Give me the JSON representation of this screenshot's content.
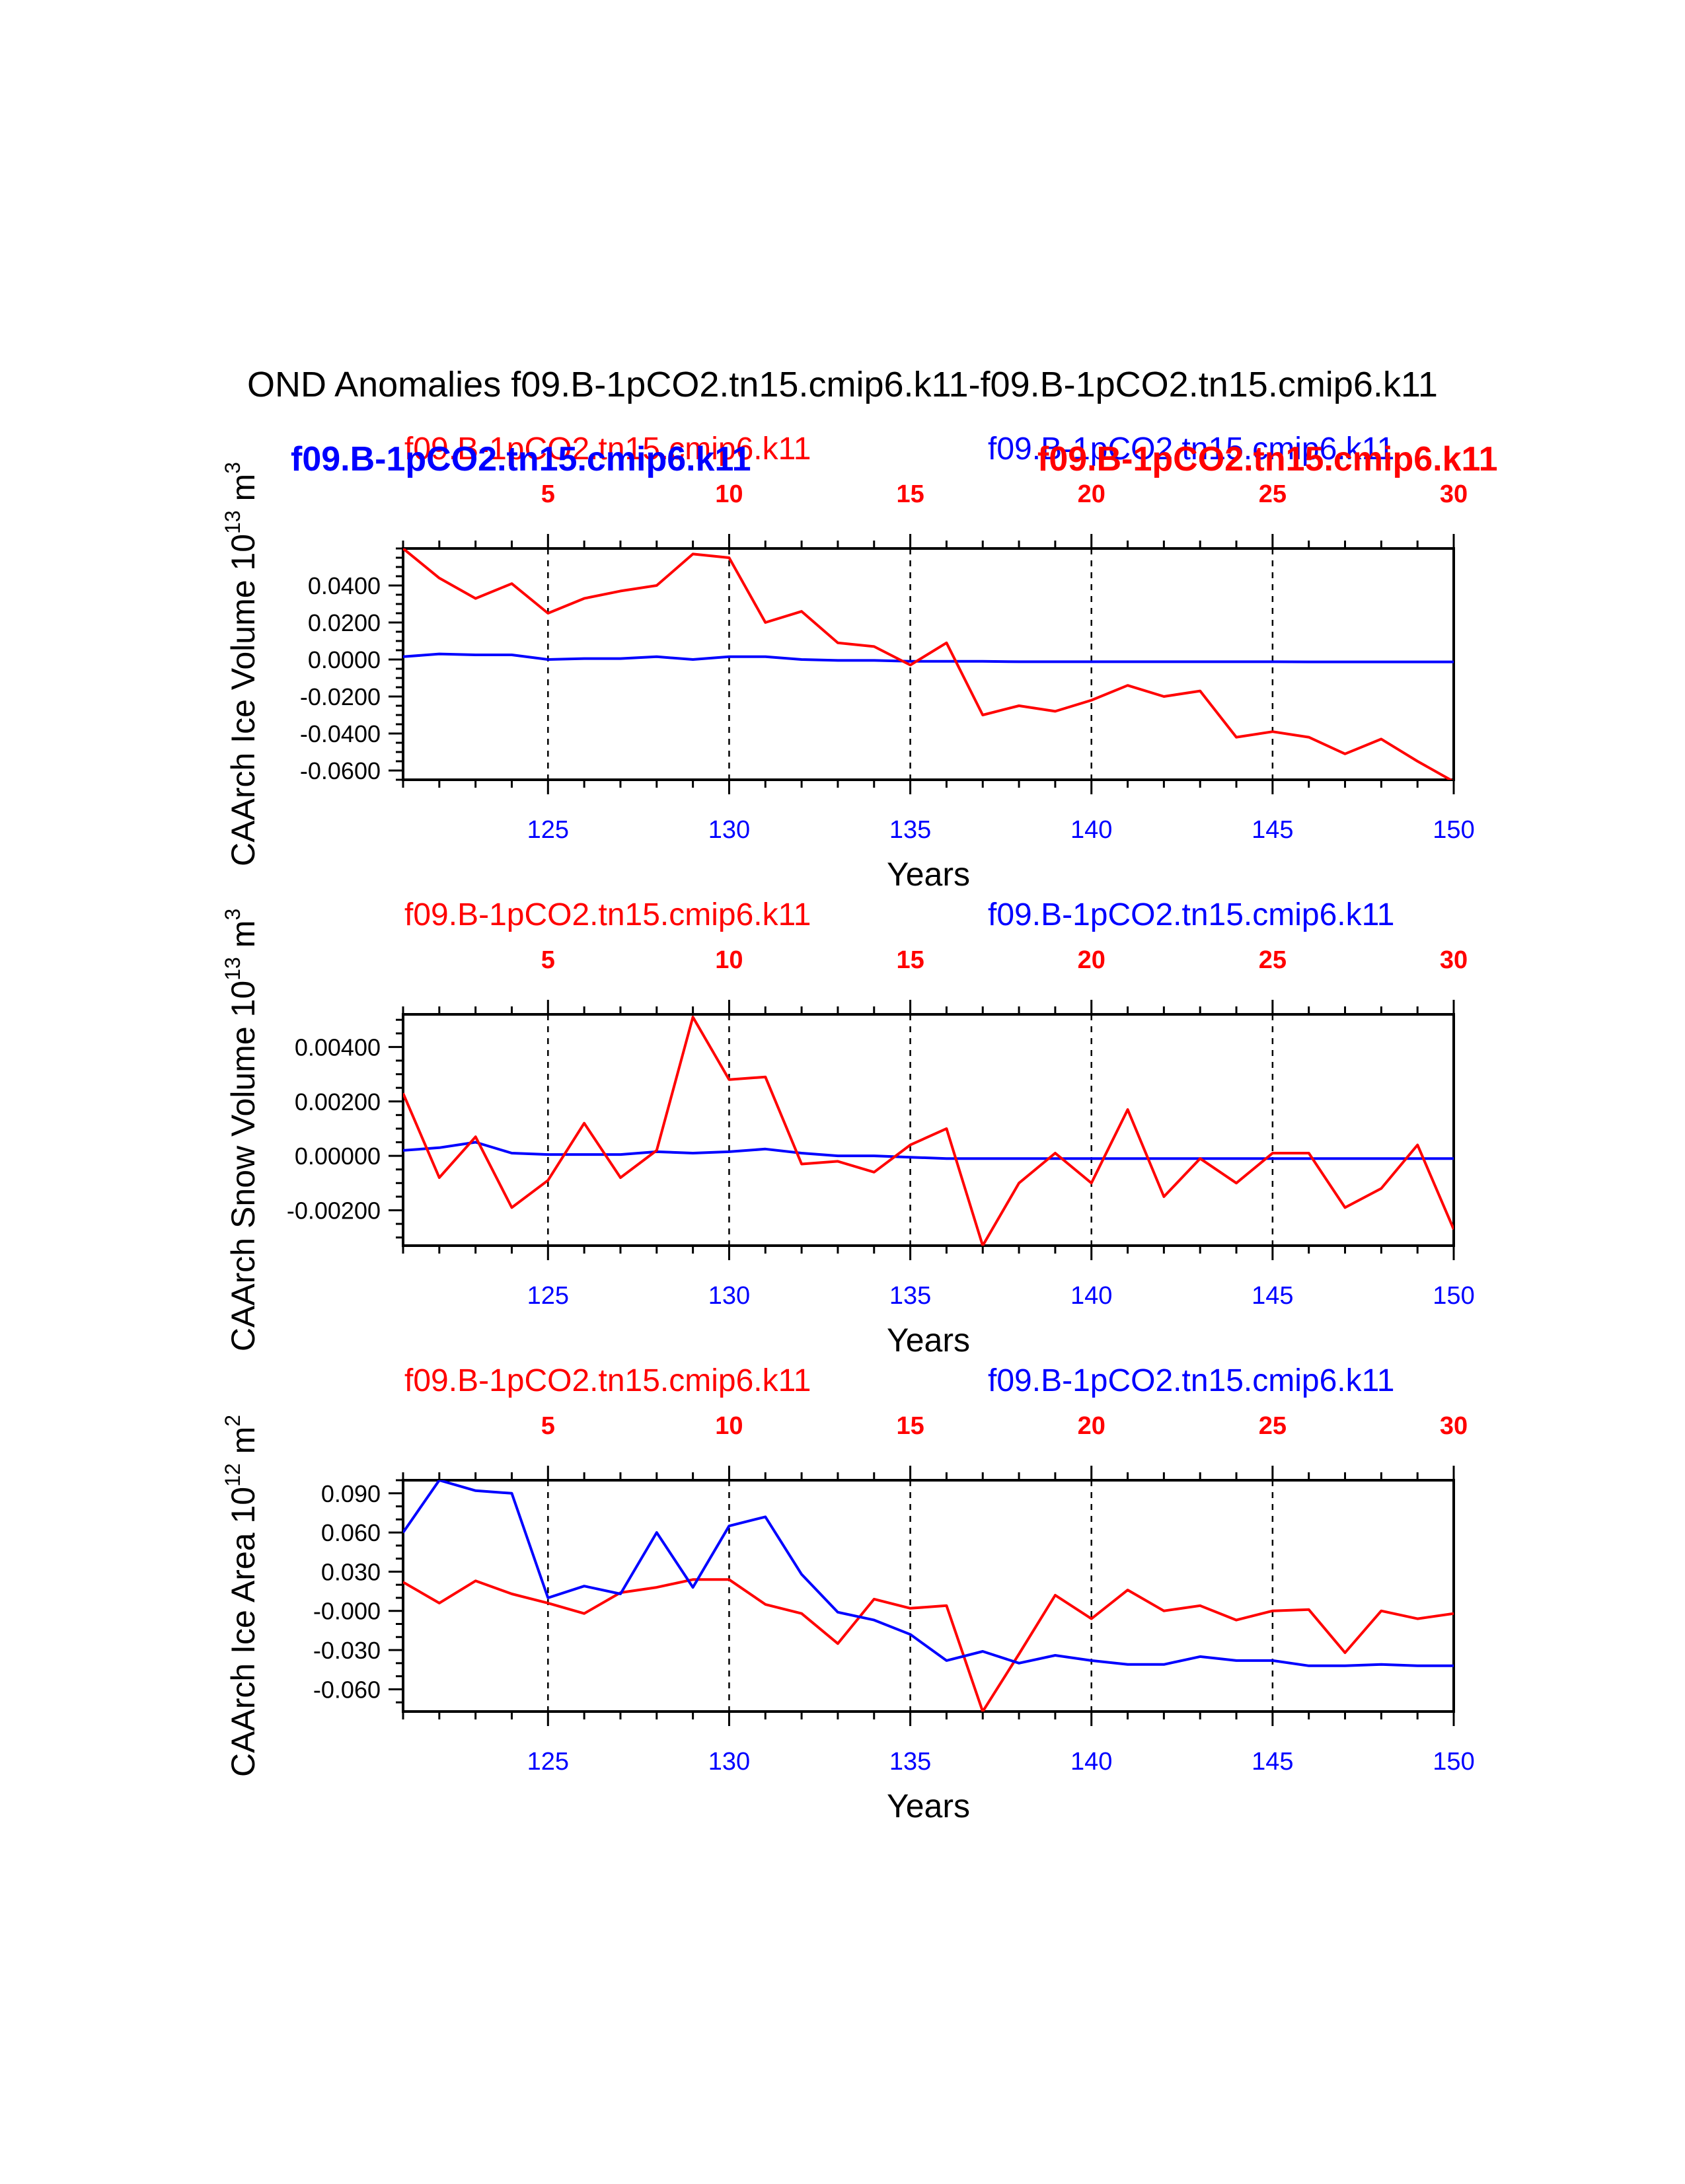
{
  "title": "OND Anomalies f09.B-1pCO2.tn15.cmip6.k11-f09.B-1pCO2.tn15.cmip6.k11",
  "colors": {
    "series_a": "#ff0000",
    "series_b": "#0000ff",
    "axis": "#000000"
  },
  "chart_data": [
    {
      "type": "line",
      "ylabel": "CAArch Ice Volume 10",
      "ylabel_exp": "13",
      "ylabel_unit": "m",
      "ylabel_unit_exp": "3",
      "xlabel": "Years",
      "left_label": "f09.B-1pCO2.tn15.cmip6.k11",
      "right_label": "f09.B-1pCO2.tn15.cmip6.k11",
      "overlay_left_label": "f09.B-1pCO2.tn15.cmip6.k11",
      "overlay_right_label": "f09.B-1pCO2.tn15.cmip6.k11",
      "xlim": [
        121,
        150
      ],
      "ylim": [
        -0.065,
        0.06
      ],
      "yticks": [
        0.04,
        0.02,
        0.0,
        -0.02,
        -0.04,
        -0.06
      ],
      "ytick_labels": [
        "0.0400",
        "0.0200",
        "0.0000",
        "-0.0200",
        "-0.0400",
        "-0.0600"
      ],
      "yminor": 0.005,
      "x": [
        121,
        122,
        123,
        124,
        125,
        126,
        127,
        128,
        129,
        130,
        131,
        132,
        133,
        134,
        135,
        136,
        137,
        138,
        139,
        140,
        141,
        142,
        143,
        144,
        145,
        146,
        147,
        148,
        149,
        150
      ],
      "series": [
        {
          "name": "f09.B-1pCO2.tn15.cmip6.k11",
          "color": "#ff0000",
          "values": [
            0.06,
            0.044,
            0.033,
            0.041,
            0.025,
            0.033,
            0.037,
            0.04,
            0.057,
            0.055,
            0.02,
            0.026,
            0.009,
            0.007,
            -0.003,
            0.009,
            -0.03,
            -0.025,
            -0.028,
            -0.022,
            -0.014,
            -0.02,
            -0.017,
            -0.042,
            -0.039,
            -0.042,
            -0.051,
            -0.043,
            -0.055,
            -0.066
          ]
        },
        {
          "name": "f09.B-1pCO2.tn15.cmip6.k11",
          "color": "#0000ff",
          "values": [
            0.0015,
            0.003,
            0.0025,
            0.0025,
            0.0,
            0.0005,
            0.0005,
            0.0015,
            0.0,
            0.0015,
            0.0015,
            0.0,
            -0.0005,
            -0.0005,
            -0.001,
            -0.001,
            -0.001,
            -0.0012,
            -0.0012,
            -0.0012,
            -0.0012,
            -0.0012,
            -0.0012,
            -0.0012,
            -0.0012,
            -0.0013,
            -0.0013,
            -0.0013,
            -0.0013,
            -0.0013
          ]
        }
      ]
    },
    {
      "type": "line",
      "ylabel": "CAArch Snow Volume 10",
      "ylabel_exp": "13",
      "ylabel_unit": "m",
      "ylabel_unit_exp": "3",
      "xlabel": "Years",
      "left_label": "f09.B-1pCO2.tn15.cmip6.k11",
      "right_label": "f09.B-1pCO2.tn15.cmip6.k11",
      "xlim": [
        121,
        150
      ],
      "ylim": [
        -0.0033,
        0.0052
      ],
      "yticks": [
        0.004,
        0.002,
        0.0,
        -0.002
      ],
      "ytick_labels": [
        "0.00400",
        "0.00200",
        "0.00000",
        "-0.00200"
      ],
      "yminor": 0.0005,
      "x": [
        121,
        122,
        123,
        124,
        125,
        126,
        127,
        128,
        129,
        130,
        131,
        132,
        133,
        134,
        135,
        136,
        137,
        138,
        139,
        140,
        141,
        142,
        143,
        144,
        145,
        146,
        147,
        148,
        149,
        150
      ],
      "series": [
        {
          "name": "f09.B-1pCO2.tn15.cmip6.k11",
          "color": "#ff0000",
          "values": [
            0.0023,
            -0.0008,
            0.0007,
            -0.0019,
            -0.0009,
            0.0012,
            -0.0008,
            0.0002,
            0.0051,
            0.0028,
            0.0029,
            -0.0003,
            -0.0002,
            -0.0006,
            0.0004,
            0.001,
            -0.0033,
            -0.001,
            0.0001,
            -0.001,
            0.0017,
            -0.0015,
            -0.0001,
            -0.001,
            0.0001,
            0.0001,
            -0.0019,
            -0.0012,
            0.0004,
            -0.0027
          ]
        },
        {
          "name": "f09.B-1pCO2.tn15.cmip6.k11",
          "color": "#0000ff",
          "values": [
            0.0002,
            0.0003,
            0.0005,
            0.0001,
            5e-05,
            5e-05,
            5e-05,
            0.00015,
            0.0001,
            0.00015,
            0.00025,
            0.0001,
            0.0,
            0.0,
            -5e-05,
            -0.0001,
            -0.0001,
            -0.0001,
            -0.0001,
            -0.0001,
            -0.0001,
            -0.0001,
            -0.0001,
            -0.0001,
            -0.0001,
            -0.0001,
            -0.0001,
            -0.0001,
            -0.0001,
            -0.0001
          ]
        }
      ]
    },
    {
      "type": "line",
      "ylabel": "CAArch Ice Area 10",
      "ylabel_exp": "12",
      "ylabel_unit": "m",
      "ylabel_unit_exp": "2",
      "xlabel": "Years",
      "left_label": "f09.B-1pCO2.tn15.cmip6.k11",
      "right_label": "f09.B-1pCO2.tn15.cmip6.k11",
      "xlim": [
        121,
        150
      ],
      "ylim": [
        -0.077,
        0.1
      ],
      "yticks": [
        0.09,
        0.06,
        0.03,
        0.0,
        -0.03,
        -0.06
      ],
      "ytick_labels": [
        "0.090",
        "0.060",
        "0.030",
        "-0.000",
        "-0.030",
        "-0.060"
      ],
      "yminor": 0.01,
      "x": [
        121,
        122,
        123,
        124,
        125,
        126,
        127,
        128,
        129,
        130,
        131,
        132,
        133,
        134,
        135,
        136,
        137,
        138,
        139,
        140,
        141,
        142,
        143,
        144,
        145,
        146,
        147,
        148,
        149,
        150
      ],
      "series": [
        {
          "name": "f09.B-1pCO2.tn15.cmip6.k11",
          "color": "#ff0000",
          "values": [
            0.022,
            0.006,
            0.023,
            0.013,
            0.006,
            -0.002,
            0.014,
            0.018,
            0.024,
            0.024,
            0.005,
            -0.002,
            -0.025,
            0.009,
            0.002,
            0.004,
            -0.077,
            -0.033,
            0.012,
            -0.006,
            0.016,
            0.0,
            0.004,
            -0.007,
            0.0,
            0.001,
            -0.032,
            0.0,
            -0.006,
            -0.002
          ]
        },
        {
          "name": "f09.B-1pCO2.tn15.cmip6.k11",
          "color": "#0000ff",
          "values": [
            0.06,
            0.1,
            0.092,
            0.09,
            0.01,
            0.019,
            0.013,
            0.06,
            0.018,
            0.065,
            0.072,
            0.028,
            -0.001,
            -0.007,
            -0.018,
            -0.038,
            -0.031,
            -0.04,
            -0.034,
            -0.038,
            -0.041,
            -0.041,
            -0.035,
            -0.038,
            -0.038,
            -0.042,
            -0.042,
            -0.041,
            -0.042,
            -0.042
          ]
        }
      ]
    }
  ],
  "bottom_xticks": [
    125,
    130,
    135,
    140,
    145,
    150
  ],
  "top_xticks": [
    "5",
    "10",
    "15",
    "20",
    "25",
    "30"
  ],
  "top_xtick_years": [
    125,
    130,
    135,
    140,
    145,
    150
  ]
}
